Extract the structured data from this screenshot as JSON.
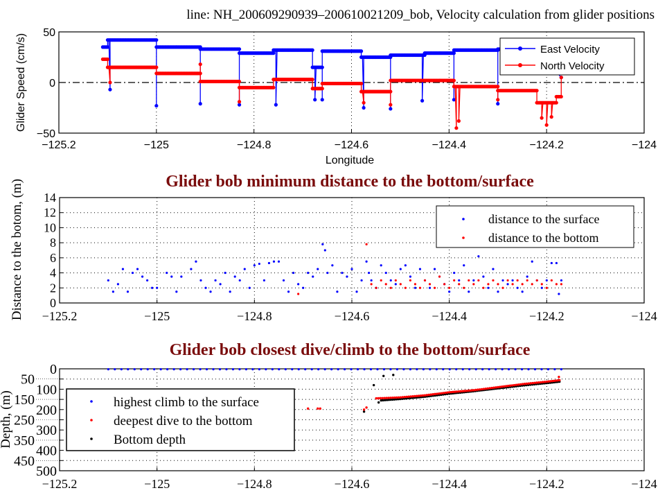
{
  "chart_data": [
    {
      "type": "line",
      "title": "line: NH_200609290939–200610021209_bob, Velocity calculation from glider positions",
      "xlabel": "Longitude",
      "ylabel": "Glider Speed (cm/s)",
      "xlim": [
        -125.2,
        -124
      ],
      "ylim": [
        -50,
        50
      ],
      "xticks": [
        -125.2,
        -125,
        -124.8,
        -124.6,
        -124.4,
        -124.2,
        -124
      ],
      "xtick_labels": [
        "−125.2",
        "−125",
        "−124.8",
        "−124.6",
        "−124.4",
        "−124.2",
        "−124"
      ],
      "yticks": [
        50,
        0,
        -50
      ],
      "ytick_labels": [
        "50",
        "0",
        "−50"
      ],
      "grid": "x-dotted",
      "legend": "top-right",
      "series": [
        {
          "name": "East Velocity",
          "color": "#0000ff",
          "segments": [
            [
              -125.11,
              -125.1,
              35
            ],
            [
              -125.1,
              -125.0,
              42
            ],
            [
              -125.0,
              -124.91,
              35
            ],
            [
              -124.91,
              -124.83,
              33
            ],
            [
              -124.83,
              -124.76,
              29
            ],
            [
              -124.76,
              -124.68,
              32
            ],
            [
              -124.68,
              -124.66,
              15
            ],
            [
              -124.66,
              -124.58,
              31
            ],
            [
              -124.58,
              -124.52,
              25
            ],
            [
              -124.52,
              -124.45,
              27
            ],
            [
              -124.45,
              -124.39,
              29
            ],
            [
              -124.39,
              -124.3,
              32
            ],
            [
              -124.3,
              -124.22,
              33
            ]
          ],
          "spikes": [
            [
              -125.095,
              -7
            ],
            [
              -125.0,
              -23
            ],
            [
              -124.91,
              -21
            ],
            [
              -124.83,
              -22
            ],
            [
              -124.755,
              -22
            ],
            [
              -124.675,
              -17
            ],
            [
              -124.66,
              -17
            ],
            [
              -124.575,
              -25
            ],
            [
              -124.52,
              -26
            ],
            [
              -124.455,
              -18
            ],
            [
              -124.39,
              -17
            ],
            [
              -124.3,
              -21
            ],
            [
              -124.17,
              5
            ]
          ]
        },
        {
          "name": "North Velocity",
          "color": "#ff0000",
          "segments": [
            [
              -125.11,
              -125.1,
              23
            ],
            [
              -125.1,
              -125.0,
              15
            ],
            [
              -125.0,
              -124.91,
              9
            ],
            [
              -124.91,
              -124.83,
              1
            ],
            [
              -124.83,
              -124.76,
              -5
            ],
            [
              -124.76,
              -124.68,
              3
            ],
            [
              -124.68,
              -124.66,
              -6
            ],
            [
              -124.66,
              -124.58,
              -1
            ],
            [
              -124.58,
              -124.52,
              -9
            ],
            [
              -124.52,
              -124.39,
              2
            ],
            [
              -124.39,
              -124.3,
              -4
            ],
            [
              -124.3,
              -124.22,
              -8
            ],
            [
              -124.22,
              -124.18,
              -20
            ],
            [
              -124.18,
              -124.17,
              -14
            ]
          ],
          "spikes": [
            [
              -125.095,
              0
            ],
            [
              -124.91,
              18
            ],
            [
              -124.83,
              -19
            ],
            [
              -124.575,
              -20
            ],
            [
              -124.52,
              -22
            ],
            [
              -124.385,
              -45
            ],
            [
              -124.38,
              -38
            ],
            [
              -124.3,
              -17
            ],
            [
              -124.21,
              -35
            ],
            [
              -124.2,
              -42
            ],
            [
              -124.19,
              -34
            ],
            [
              -124.17,
              5
            ]
          ]
        }
      ]
    },
    {
      "type": "scatter",
      "title": "Glider bob minimum distance to the bottom/surface",
      "xlabel": "",
      "ylabel": "Distance to the botom, (m)",
      "xlim": [
        -125.2,
        -124
      ],
      "ylim": [
        0,
        14
      ],
      "xticks": [
        -125.2,
        -125,
        -124.8,
        -124.6,
        -124.4,
        -124.2,
        -124
      ],
      "xtick_labels": [
        "−125.2",
        "−125",
        "−124.8",
        "−124.6",
        "−124.4",
        "−124.2",
        "−124"
      ],
      "yticks": [
        0,
        2,
        4,
        6,
        8,
        10,
        12,
        14
      ],
      "ytick_labels": [
        "0",
        "2",
        "4",
        "6",
        "8",
        "10",
        "12",
        "14"
      ],
      "grid": "dotted",
      "legend": "top-right",
      "series": [
        {
          "name": "distance to the surface",
          "color": "#0000ff",
          "points": [
            [
              -125.1,
              3
            ],
            [
              -125.09,
              1.5
            ],
            [
              -125.08,
              2.5
            ],
            [
              -125.07,
              4.5
            ],
            [
              -125.06,
              1.5
            ],
            [
              -125.05,
              4
            ],
            [
              -125.04,
              4.5
            ],
            [
              -125.03,
              3.5
            ],
            [
              -125.02,
              3
            ],
            [
              -125.01,
              2
            ],
            [
              -125.0,
              2
            ],
            [
              -124.98,
              4
            ],
            [
              -124.97,
              3.5
            ],
            [
              -124.96,
              1.5
            ],
            [
              -124.95,
              3.5
            ],
            [
              -124.93,
              4.5
            ],
            [
              -124.92,
              5.5
            ],
            [
              -124.91,
              3
            ],
            [
              -124.9,
              2
            ],
            [
              -124.89,
              1.5
            ],
            [
              -124.88,
              3
            ],
            [
              -124.87,
              2.5
            ],
            [
              -124.86,
              4
            ],
            [
              -124.85,
              1.5
            ],
            [
              -124.84,
              3.5
            ],
            [
              -124.83,
              3
            ],
            [
              -124.82,
              4.5
            ],
            [
              -124.81,
              2
            ],
            [
              -124.8,
              5
            ],
            [
              -124.79,
              5.2
            ],
            [
              -124.78,
              3
            ],
            [
              -124.77,
              5.3
            ],
            [
              -124.76,
              5.5
            ],
            [
              -124.75,
              5.5
            ],
            [
              -124.74,
              3
            ],
            [
              -124.73,
              1.5
            ],
            [
              -124.72,
              4
            ],
            [
              -124.71,
              2.5
            ],
            [
              -124.7,
              2
            ],
            [
              -124.69,
              4
            ],
            [
              -124.68,
              3.5
            ],
            [
              -124.67,
              4.5
            ],
            [
              -124.66,
              7.8
            ],
            [
              -124.655,
              7
            ],
            [
              -124.65,
              4
            ],
            [
              -124.64,
              5
            ],
            [
              -124.63,
              1.5
            ],
            [
              -124.62,
              4
            ],
            [
              -124.61,
              3.5
            ],
            [
              -124.6,
              4.5
            ],
            [
              -124.59,
              1.5
            ],
            [
              -124.58,
              3
            ],
            [
              -124.57,
              5.5
            ],
            [
              -124.565,
              4
            ],
            [
              -124.56,
              3
            ],
            [
              -124.55,
              2
            ],
            [
              -124.54,
              5
            ],
            [
              -124.53,
              4
            ],
            [
              -124.52,
              3
            ],
            [
              -124.51,
              2.5
            ],
            [
              -124.5,
              4.5
            ],
            [
              -124.49,
              5
            ],
            [
              -124.48,
              3.5
            ],
            [
              -124.47,
              2
            ],
            [
              -124.46,
              4.5
            ],
            [
              -124.45,
              3
            ],
            [
              -124.44,
              2
            ],
            [
              -124.43,
              4.5
            ],
            [
              -124.42,
              3.5
            ],
            [
              -124.41,
              2.5
            ],
            [
              -124.4,
              1.5
            ],
            [
              -124.39,
              4
            ],
            [
              -124.38,
              3
            ],
            [
              -124.37,
              5
            ],
            [
              -124.36,
              1.5
            ],
            [
              -124.35,
              3
            ],
            [
              -124.34,
              6.2
            ],
            [
              -124.33,
              3.5
            ],
            [
              -124.32,
              2
            ],
            [
              -124.31,
              4.5
            ],
            [
              -124.3,
              1.5
            ],
            [
              -124.29,
              3
            ],
            [
              -124.28,
              2.5
            ],
            [
              -124.27,
              3
            ],
            [
              -124.26,
              2
            ],
            [
              -124.25,
              1.5
            ],
            [
              -124.24,
              3.5
            ],
            [
              -124.23,
              5.5
            ],
            [
              -124.22,
              3
            ],
            [
              -124.21,
              2
            ],
            [
              -124.2,
              3
            ],
            [
              -124.19,
              5.3
            ],
            [
              -124.18,
              5.3
            ],
            [
              -124.175,
              1.2
            ],
            [
              -124.17,
              3
            ]
          ]
        },
        {
          "name": "distance to the bottom",
          "color": "#ff0000",
          "points": [
            [
              -124.71,
              1.2
            ],
            [
              -124.57,
              7.8
            ],
            [
              -124.56,
              2.5
            ],
            [
              -124.55,
              2
            ],
            [
              -124.54,
              3
            ],
            [
              -124.53,
              2.5
            ],
            [
              -124.52,
              2
            ],
            [
              -124.51,
              3
            ],
            [
              -124.5,
              2.5
            ],
            [
              -124.49,
              2
            ],
            [
              -124.48,
              3
            ],
            [
              -124.47,
              2.5
            ],
            [
              -124.46,
              2
            ],
            [
              -124.45,
              3
            ],
            [
              -124.44,
              2.5
            ],
            [
              -124.43,
              2
            ],
            [
              -124.42,
              3.5
            ],
            [
              -124.41,
              2.5
            ],
            [
              -124.4,
              2
            ],
            [
              -124.39,
              3
            ],
            [
              -124.38,
              2.5
            ],
            [
              -124.37,
              2
            ],
            [
              -124.36,
              3
            ],
            [
              -124.35,
              2.5
            ],
            [
              -124.34,
              3
            ],
            [
              -124.33,
              2
            ],
            [
              -124.32,
              2.5
            ],
            [
              -124.31,
              3
            ],
            [
              -124.3,
              2.5
            ],
            [
              -124.29,
              2
            ],
            [
              -124.28,
              3
            ],
            [
              -124.27,
              2.5
            ],
            [
              -124.26,
              3
            ],
            [
              -124.25,
              2.5
            ],
            [
              -124.24,
              3
            ],
            [
              -124.23,
              2.5
            ],
            [
              -124.22,
              3
            ],
            [
              -124.21,
              2.5
            ],
            [
              -124.2,
              2
            ],
            [
              -124.19,
              3
            ],
            [
              -124.18,
              2.5
            ],
            [
              -124.17,
              2.5
            ]
          ]
        }
      ]
    },
    {
      "type": "scatter",
      "title": "Glider bob closest dive/climb to the bottom/surface",
      "xlabel": "",
      "ylabel": "Depth, (m)",
      "xlim": [
        -125.2,
        -124
      ],
      "ylim": [
        500,
        0
      ],
      "xticks": [
        -125.2,
        -125,
        -124.8,
        -124.6,
        -124.4,
        -124.2,
        -124
      ],
      "xtick_labels": [
        "−125.2",
        "−125",
        "−124.8",
        "−124.6",
        "−124.4",
        "−124.2",
        "−124"
      ],
      "yticks": [
        0,
        50,
        100,
        150,
        200,
        250,
        300,
        350,
        400,
        450,
        500
      ],
      "ytick_labels": [
        "0",
        "50",
        "100",
        "150",
        "200",
        "250",
        "300",
        "350",
        "400",
        "450",
        "500"
      ],
      "grid": "dotted",
      "legend": "left",
      "series": [
        {
          "name": "highest climb to the surface",
          "color": "#0000ff",
          "lon_range": [
            -125.1,
            -124.17
          ],
          "count": 70,
          "depth": 2
        },
        {
          "name": "deepest dive to the bottom",
          "color": "#ff0000",
          "points": [
            [
              -124.69,
              195
            ],
            [
              -124.67,
              195
            ],
            [
              -124.665,
              195
            ],
            [
              -124.575,
              200
            ],
            [
              -124.57,
              190
            ],
            [
              -124.175,
              40
            ]
          ],
          "track": [
            [
              -124.55,
              145
            ],
            [
              -124.5,
              140
            ],
            [
              -124.45,
              130
            ],
            [
              -124.4,
              115
            ],
            [
              -124.35,
              105
            ],
            [
              -124.3,
              90
            ],
            [
              -124.25,
              75
            ],
            [
              -124.2,
              63
            ],
            [
              -124.17,
              55
            ]
          ]
        },
        {
          "name": "Bottom depth",
          "color": "#000000",
          "points": [
            [
              -124.575,
              210
            ],
            [
              -124.555,
              80
            ],
            [
              -124.535,
              35
            ],
            [
              -124.515,
              30
            ],
            [
              -124.545,
              165
            ]
          ],
          "track": [
            [
              -124.54,
              155
            ],
            [
              -124.5,
              148
            ],
            [
              -124.45,
              137
            ],
            [
              -124.4,
              122
            ],
            [
              -124.35,
              110
            ],
            [
              -124.3,
              96
            ],
            [
              -124.25,
              82
            ],
            [
              -124.2,
              70
            ],
            [
              -124.17,
              62
            ]
          ]
        }
      ]
    }
  ]
}
